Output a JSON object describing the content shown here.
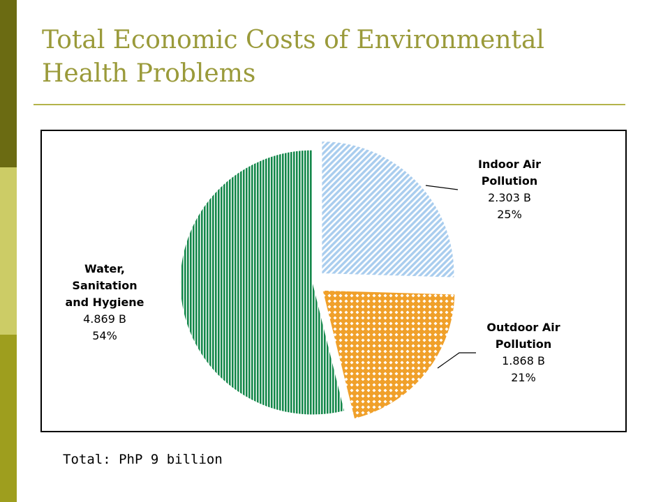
{
  "slide": {
    "title": "Total Economic Costs of Environmental Health Problems",
    "total_note": "Total: PhP 9 billion",
    "colors": {
      "title": "#9a9a3a",
      "rule": "#b3b34a",
      "sidebar": [
        "#6b6b12",
        "#cccc66",
        "#9e9e1e"
      ]
    }
  },
  "chart_data": {
    "type": "pie",
    "title": "",
    "slices": [
      {
        "name": "Indoor Air Pollution",
        "name_lines": [
          "Indoor Air",
          "Pollution"
        ],
        "value": 2.303,
        "value_label": "2.303 B",
        "percent": 25,
        "percent_label": "25%",
        "color": "#a9cdee",
        "pattern": "diagonal-hatch",
        "exploded": true
      },
      {
        "name": "Outdoor Air Pollution",
        "name_lines": [
          "Outdoor Air",
          "Pollution"
        ],
        "value": 1.868,
        "value_label": "1.868 B",
        "percent": 21,
        "percent_label": "21%",
        "color": "#f0a02a",
        "pattern": "diamond-lattice",
        "exploded": true
      },
      {
        "name": "Water, Sanitation and Hygiene",
        "name_lines": [
          "Water,",
          "Sanitation",
          "and Hygiene"
        ],
        "value": 4.869,
        "value_label": "4.869 B",
        "percent": 54,
        "percent_label": "54%",
        "color": "#13874a",
        "pattern": "vertical-stripes",
        "exploded": false
      }
    ],
    "legend": "none",
    "leader_lines": true
  }
}
